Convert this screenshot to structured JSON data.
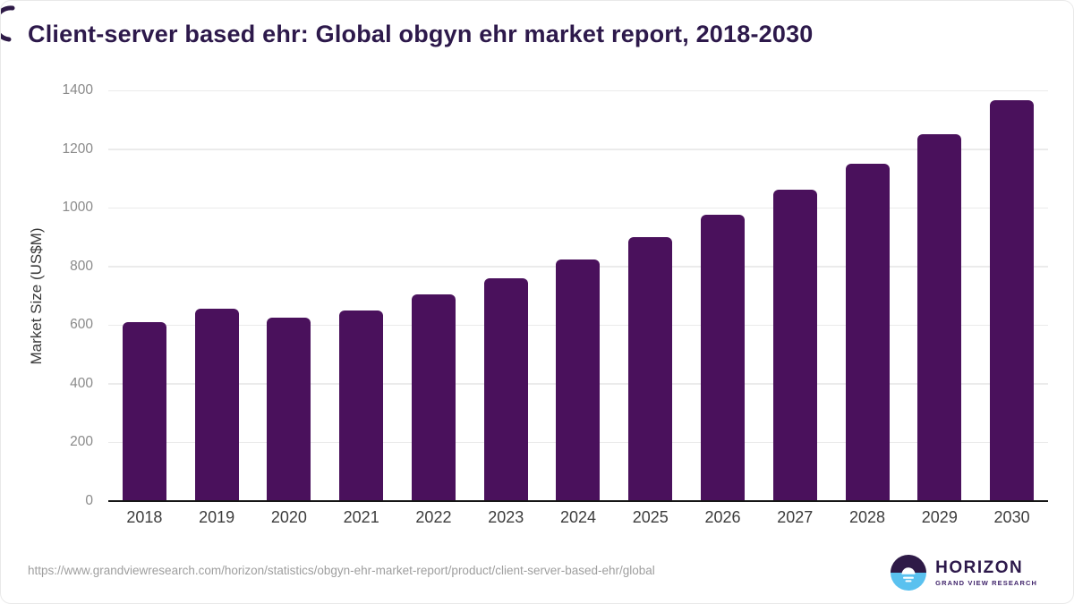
{
  "title": "Client-server based ehr: Global obgyn ehr market report, 2018-2030",
  "chart_data": {
    "type": "bar",
    "categories": [
      "2018",
      "2019",
      "2020",
      "2021",
      "2022",
      "2023",
      "2024",
      "2025",
      "2026",
      "2027",
      "2028",
      "2029",
      "2030"
    ],
    "values": [
      610,
      655,
      625,
      650,
      705,
      760,
      825,
      900,
      975,
      1060,
      1150,
      1250,
      1365
    ],
    "title": "Client-server based ehr: Global obgyn ehr market report, 2018-2030",
    "xlabel": "",
    "ylabel": "Market Size (US$M)",
    "ylim": [
      0,
      1400
    ],
    "yticks": [
      0,
      200,
      400,
      600,
      800,
      1000,
      1200,
      1400
    ],
    "grid": true,
    "legend": "none",
    "bar_color": "#4a115c"
  },
  "footer": {
    "source_url": "https://www.grandviewresearch.com/horizon/statistics/obgyn-ehr-market-report/product/client-server-based-ehr/global",
    "logo": {
      "name": "HORIZON",
      "subtitle": "GRAND VIEW RESEARCH",
      "icon": "horizon-sun-circle-icon"
    }
  },
  "colors": {
    "title_text": "#2d194b",
    "bar": "#4a115c",
    "y_tick_text": "#8a8a8a",
    "x_tick_text": "#3d3d3d",
    "gridline": "#ebebeb",
    "axis_line": "#161616",
    "url_text": "#9e9e9e",
    "logo_blue": "#5ac1ef",
    "logo_purple": "#2e1a47"
  }
}
